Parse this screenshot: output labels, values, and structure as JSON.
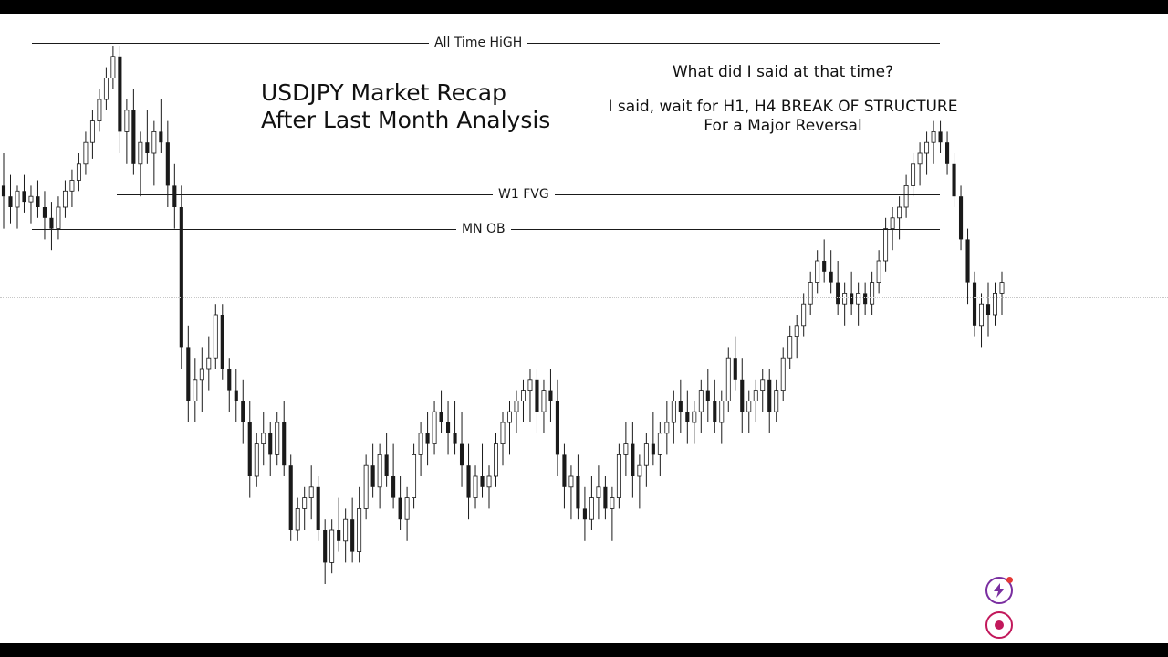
{
  "title": {
    "line1": "USDJPY Market Recap",
    "line2": "After Last Month Analysis"
  },
  "note": {
    "question": "What did I said at that time?",
    "answer_line1": "I said, wait for H1, H4 BREAK OF STRUCTURE",
    "answer_line2": "For a Major Reversal"
  },
  "levels": {
    "ath": "All Time HiGH",
    "w1_fvg": "W1 FVG",
    "mn_ob": "MN OB"
  },
  "icons": {
    "bolt": "lightning-bolt-icon",
    "record": "record-icon"
  },
  "colors": {
    "candle": "#1a1a1a",
    "background": "#ffffff",
    "accent": "#9b2a7a"
  },
  "chart_data": {
    "type": "candlestick",
    "series": [
      {
        "ohlc": [
          [
            74,
            80,
            66,
            72
          ],
          [
            72,
            76,
            67,
            70
          ],
          [
            70,
            74,
            66,
            73
          ],
          [
            73,
            76,
            69,
            71
          ],
          [
            71,
            74,
            67,
            72
          ],
          [
            72,
            75,
            68,
            70
          ],
          [
            70,
            73,
            64,
            68
          ],
          [
            68,
            71,
            62,
            66
          ],
          [
            66,
            72,
            64,
            70
          ],
          [
            70,
            75,
            68,
            73
          ],
          [
            73,
            77,
            70,
            75
          ],
          [
            75,
            80,
            73,
            78
          ],
          [
            78,
            84,
            76,
            82
          ],
          [
            82,
            88,
            79,
            86
          ],
          [
            86,
            92,
            84,
            90
          ],
          [
            90,
            96,
            88,
            94
          ],
          [
            94,
            100,
            92,
            98
          ],
          [
            98,
            100,
            80,
            84
          ],
          [
            84,
            90,
            78,
            88
          ],
          [
            88,
            92,
            76,
            78
          ],
          [
            78,
            84,
            72,
            82
          ],
          [
            82,
            88,
            78,
            80
          ],
          [
            80,
            86,
            74,
            84
          ],
          [
            84,
            90,
            80,
            82
          ],
          [
            82,
            86,
            70,
            74
          ],
          [
            74,
            78,
            66,
            70
          ],
          [
            70,
            74,
            40,
            44
          ],
          [
            44,
            48,
            30,
            34
          ],
          [
            34,
            42,
            30,
            38
          ],
          [
            38,
            44,
            32,
            40
          ],
          [
            40,
            46,
            36,
            42
          ],
          [
            42,
            52,
            40,
            50
          ],
          [
            50,
            52,
            38,
            40
          ],
          [
            40,
            42,
            32,
            36
          ],
          [
            36,
            40,
            30,
            34
          ],
          [
            34,
            38,
            26,
            30
          ],
          [
            30,
            34,
            16,
            20
          ],
          [
            20,
            28,
            18,
            26
          ],
          [
            26,
            32,
            22,
            28
          ],
          [
            28,
            30,
            20,
            24
          ],
          [
            24,
            32,
            22,
            30
          ],
          [
            30,
            34,
            20,
            22
          ],
          [
            22,
            24,
            8,
            10
          ],
          [
            10,
            16,
            8,
            14
          ],
          [
            14,
            18,
            10,
            16
          ],
          [
            16,
            22,
            12,
            18
          ],
          [
            18,
            20,
            8,
            10
          ],
          [
            10,
            12,
            0,
            4
          ],
          [
            4,
            12,
            2,
            10
          ],
          [
            10,
            16,
            6,
            8
          ],
          [
            8,
            14,
            4,
            12
          ],
          [
            12,
            16,
            4,
            6
          ],
          [
            6,
            18,
            4,
            14
          ],
          [
            14,
            24,
            12,
            22
          ],
          [
            22,
            26,
            16,
            18
          ],
          [
            18,
            26,
            14,
            24
          ],
          [
            24,
            28,
            18,
            20
          ],
          [
            20,
            26,
            14,
            16
          ],
          [
            16,
            20,
            10,
            12
          ],
          [
            12,
            18,
            8,
            16
          ],
          [
            16,
            26,
            14,
            24
          ],
          [
            24,
            30,
            20,
            28
          ],
          [
            28,
            32,
            22,
            26
          ],
          [
            26,
            34,
            24,
            32
          ],
          [
            32,
            36,
            28,
            30
          ],
          [
            30,
            34,
            24,
            28
          ],
          [
            28,
            34,
            24,
            26
          ],
          [
            26,
            32,
            18,
            22
          ],
          [
            22,
            26,
            12,
            16
          ],
          [
            16,
            22,
            14,
            20
          ],
          [
            20,
            26,
            16,
            18
          ],
          [
            18,
            22,
            14,
            20
          ],
          [
            20,
            28,
            18,
            26
          ],
          [
            26,
            32,
            22,
            30
          ],
          [
            30,
            34,
            24,
            32
          ],
          [
            32,
            36,
            28,
            34
          ],
          [
            34,
            38,
            30,
            36
          ],
          [
            36,
            40,
            30,
            38
          ],
          [
            38,
            40,
            28,
            32
          ],
          [
            32,
            38,
            28,
            36
          ],
          [
            36,
            40,
            30,
            34
          ],
          [
            34,
            38,
            20,
            24
          ],
          [
            24,
            26,
            14,
            18
          ],
          [
            18,
            22,
            12,
            20
          ],
          [
            20,
            24,
            12,
            14
          ],
          [
            14,
            18,
            8,
            12
          ],
          [
            12,
            20,
            10,
            16
          ],
          [
            16,
            22,
            12,
            18
          ],
          [
            18,
            20,
            12,
            14
          ],
          [
            14,
            18,
            8,
            16
          ],
          [
            16,
            26,
            14,
            24
          ],
          [
            24,
            30,
            20,
            26
          ],
          [
            26,
            30,
            16,
            20
          ],
          [
            20,
            24,
            14,
            22
          ],
          [
            22,
            28,
            18,
            26
          ],
          [
            26,
            32,
            22,
            24
          ],
          [
            24,
            30,
            20,
            28
          ],
          [
            28,
            34,
            24,
            30
          ],
          [
            30,
            36,
            26,
            34
          ],
          [
            34,
            38,
            28,
            32
          ],
          [
            32,
            36,
            26,
            30
          ],
          [
            30,
            34,
            26,
            32
          ],
          [
            32,
            38,
            28,
            36
          ],
          [
            36,
            40,
            30,
            34
          ],
          [
            34,
            38,
            28,
            30
          ],
          [
            30,
            36,
            26,
            34
          ],
          [
            34,
            44,
            32,
            42
          ],
          [
            42,
            46,
            36,
            38
          ],
          [
            38,
            42,
            28,
            32
          ],
          [
            32,
            36,
            28,
            34
          ],
          [
            34,
            38,
            30,
            36
          ],
          [
            36,
            40,
            32,
            38
          ],
          [
            38,
            40,
            28,
            32
          ],
          [
            32,
            38,
            30,
            36
          ],
          [
            36,
            44,
            34,
            42
          ],
          [
            42,
            48,
            40,
            46
          ],
          [
            46,
            50,
            42,
            48
          ],
          [
            48,
            54,
            46,
            52
          ],
          [
            52,
            58,
            50,
            56
          ],
          [
            56,
            62,
            54,
            60
          ],
          [
            60,
            64,
            56,
            58
          ],
          [
            58,
            62,
            54,
            56
          ],
          [
            56,
            60,
            50,
            52
          ],
          [
            52,
            56,
            48,
            54
          ],
          [
            54,
            58,
            50,
            52
          ],
          [
            52,
            56,
            48,
            54
          ],
          [
            54,
            56,
            50,
            52
          ],
          [
            52,
            58,
            50,
            56
          ],
          [
            56,
            62,
            54,
            60
          ],
          [
            60,
            68,
            58,
            66
          ],
          [
            66,
            70,
            62,
            68
          ],
          [
            68,
            72,
            64,
            70
          ],
          [
            70,
            76,
            68,
            74
          ],
          [
            74,
            80,
            72,
            78
          ],
          [
            78,
            82,
            74,
            80
          ],
          [
            80,
            84,
            76,
            82
          ],
          [
            82,
            86,
            78,
            84
          ],
          [
            84,
            86,
            80,
            82
          ],
          [
            82,
            84,
            76,
            78
          ],
          [
            78,
            80,
            70,
            72
          ],
          [
            72,
            74,
            62,
            64
          ],
          [
            64,
            66,
            52,
            56
          ],
          [
            56,
            58,
            46,
            48
          ],
          [
            48,
            54,
            44,
            52
          ],
          [
            52,
            56,
            46,
            50
          ],
          [
            50,
            56,
            48,
            54
          ],
          [
            54,
            58,
            50,
            56
          ]
        ]
      }
    ],
    "annotations": [
      "All Time HiGH",
      "W1 FVG",
      "MN OB"
    ],
    "grid": false
  }
}
